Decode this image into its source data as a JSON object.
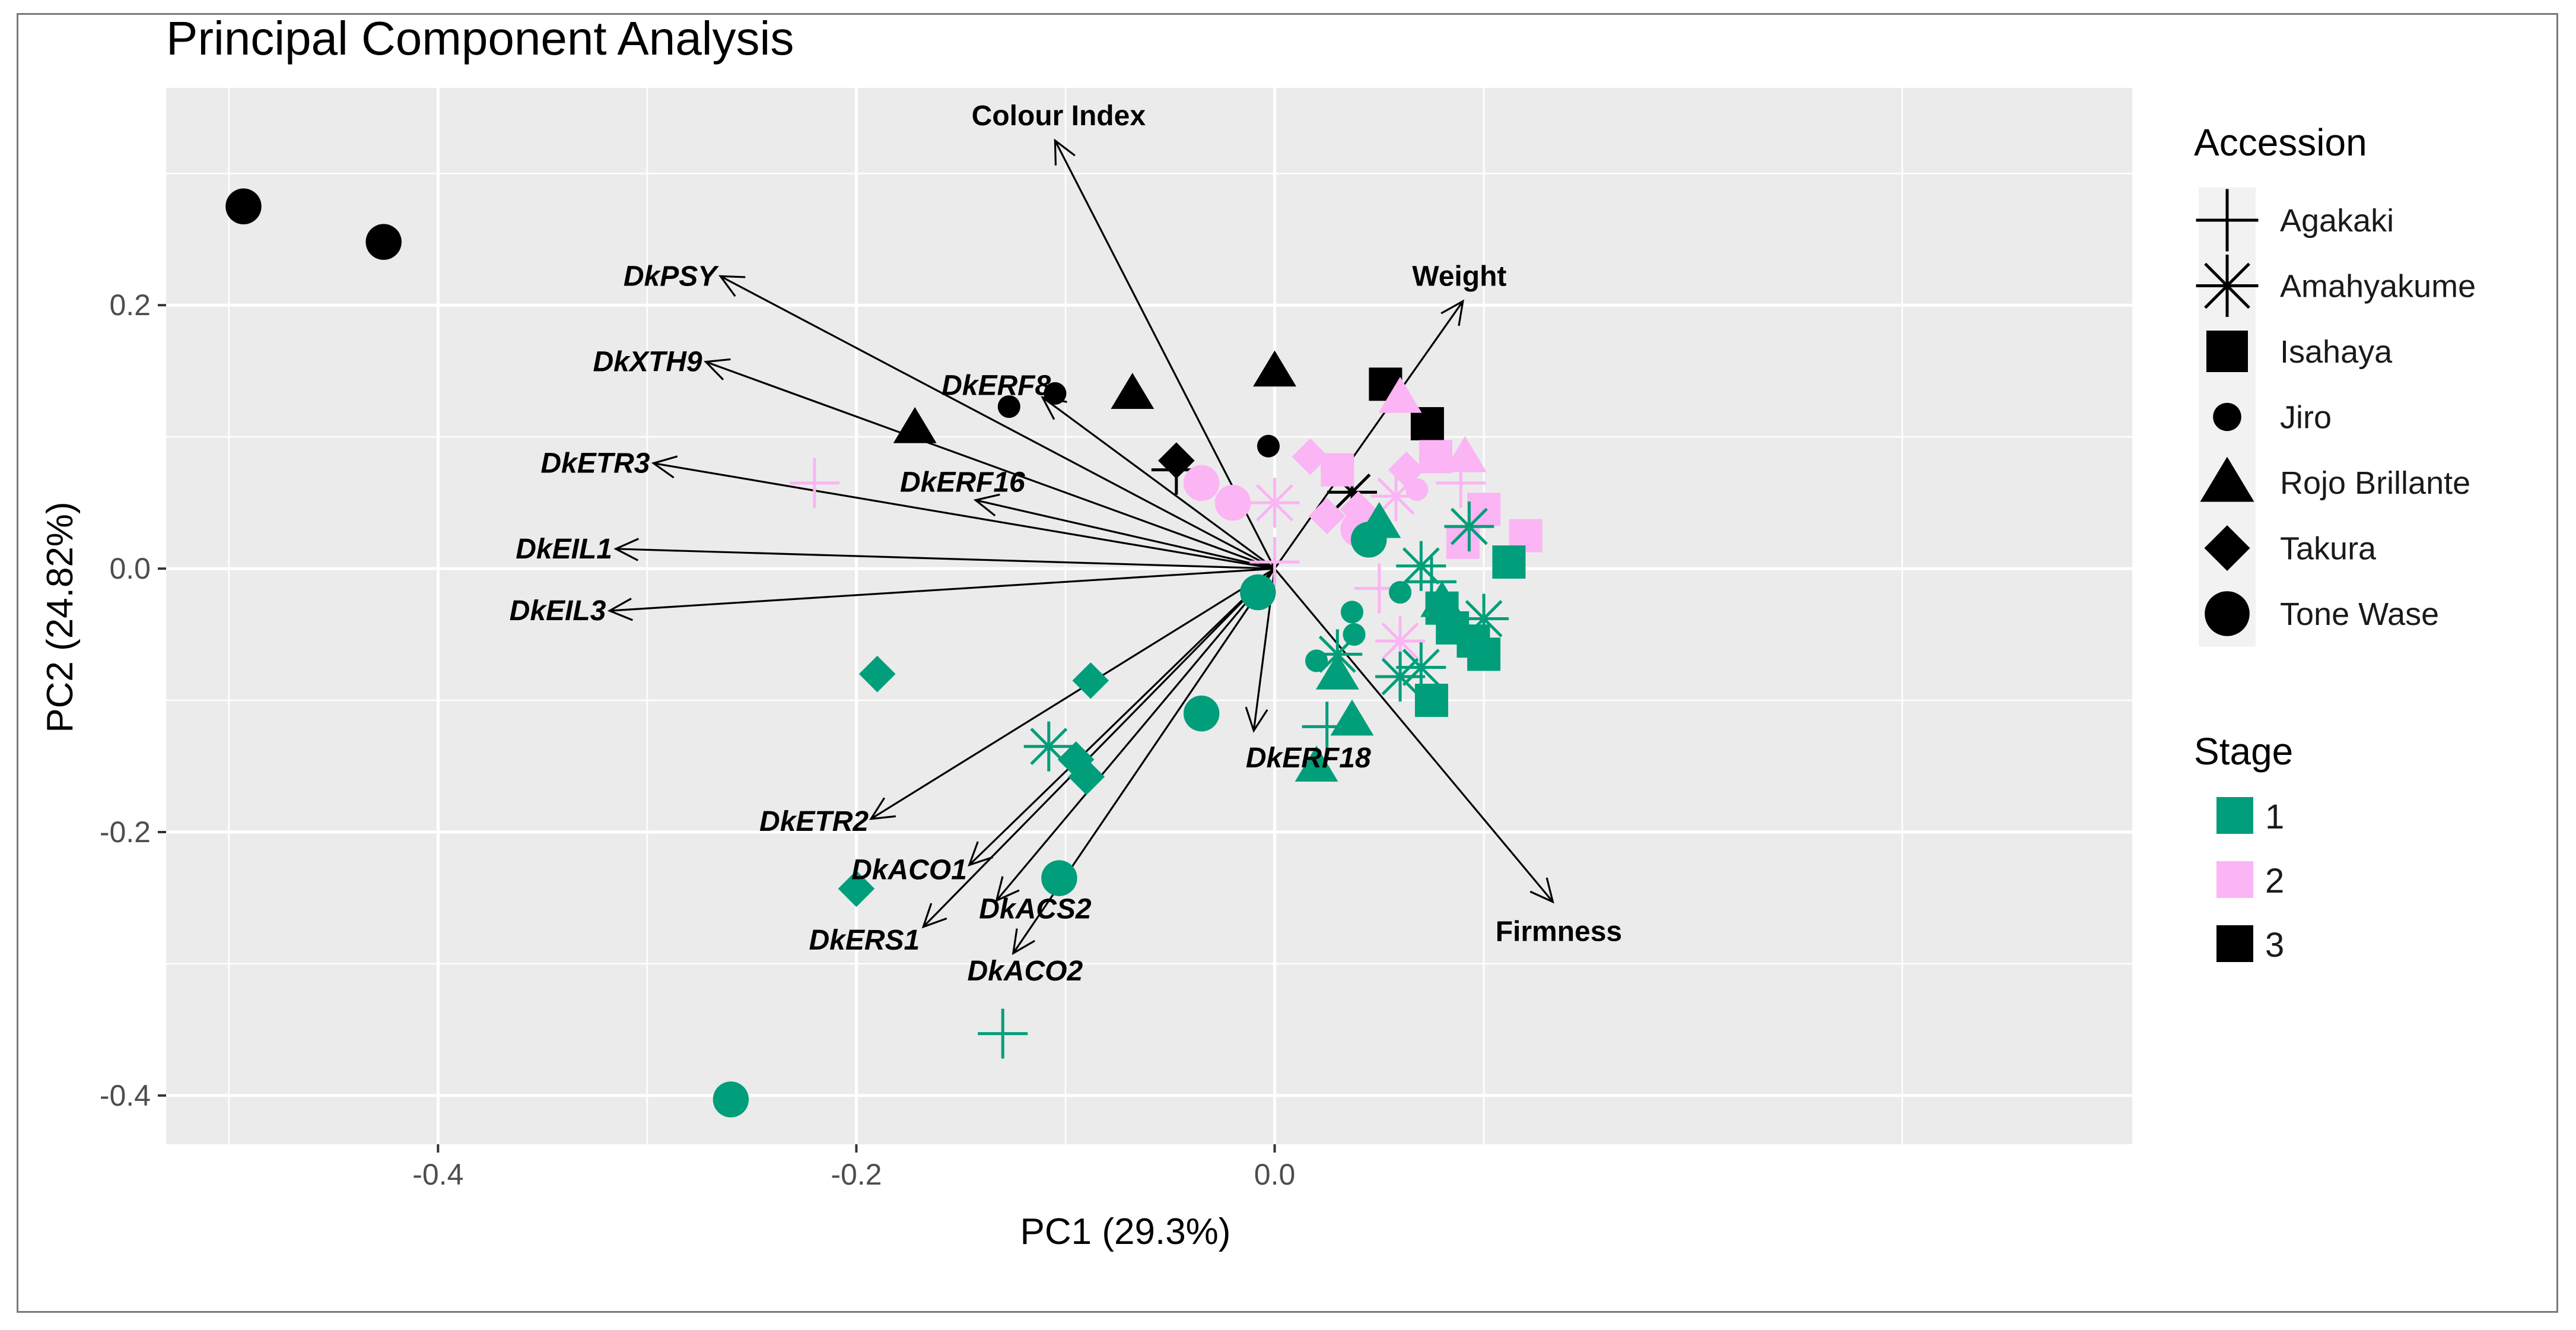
{
  "chart_data": {
    "type": "scatter",
    "title": "Principal Component Analysis",
    "xlabel": "PC1 (29.3%)",
    "ylabel": "PC2 (24.82%)",
    "xlim": [
      -0.53,
      0.41
    ],
    "ylim": [
      -0.437,
      0.365
    ],
    "x_ticks": [
      -0.4,
      -0.2,
      0.0
    ],
    "x_tick_labels": [
      "-0.4",
      "-0.2",
      "0.0"
    ],
    "y_ticks": [
      -0.4,
      -0.2,
      0.0,
      0.2
    ],
    "y_tick_labels": [
      "-0.4",
      "-0.2",
      "0.0",
      "0.2"
    ],
    "grid": true,
    "legend_accession": {
      "title": "Accession",
      "items": [
        {
          "label": "Agakaki",
          "shape": "plus"
        },
        {
          "label": "Amahyakume",
          "shape": "star"
        },
        {
          "label": "Isahaya",
          "shape": "square"
        },
        {
          "label": "Jiro",
          "shape": "smalldot"
        },
        {
          "label": "Rojo Brillante",
          "shape": "triangle"
        },
        {
          "label": "Takura",
          "shape": "diamond"
        },
        {
          "label": "Tone Wase",
          "shape": "circle"
        }
      ]
    },
    "legend_stage": {
      "title": "Stage",
      "items": [
        {
          "label": "1",
          "color": "#009E7A"
        },
        {
          "label": "2",
          "color": "#FBB4F4"
        },
        {
          "label": "3",
          "color": "#000000"
        }
      ]
    },
    "colors": {
      "1": "#009E7A",
      "2": "#FBB4F4",
      "3": "#000000"
    },
    "loadings": [
      {
        "label": "Colour Index",
        "x": -0.105,
        "y": 0.325,
        "italic": false
      },
      {
        "label": "Weight",
        "x": 0.09,
        "y": 0.203,
        "italic": false
      },
      {
        "label": "Firmness",
        "x": 0.133,
        "y": -0.253,
        "italic": false
      },
      {
        "label": "DkPSY",
        "x": -0.265,
        "y": 0.222,
        "italic": true
      },
      {
        "label": "DkXTH9",
        "x": -0.272,
        "y": 0.157,
        "italic": true
      },
      {
        "label": "DkERF8",
        "x": -0.111,
        "y": 0.13,
        "italic": true
      },
      {
        "label": "DkETR3",
        "x": -0.297,
        "y": 0.08,
        "italic": true
      },
      {
        "label": "DkERF16",
        "x": -0.143,
        "y": 0.052,
        "italic": true
      },
      {
        "label": "DkEIL1",
        "x": -0.315,
        "y": 0.015,
        "italic": true
      },
      {
        "label": "DkEIL3",
        "x": -0.318,
        "y": -0.032,
        "italic": true
      },
      {
        "label": "DkERF18",
        "x": -0.01,
        "y": -0.123,
        "italic": true
      },
      {
        "label": "DkETR2",
        "x": -0.193,
        "y": -0.19,
        "italic": true
      },
      {
        "label": "DkACO1",
        "x": -0.146,
        "y": -0.225,
        "italic": true
      },
      {
        "label": "DkERS1",
        "x": -0.168,
        "y": -0.272,
        "italic": true
      },
      {
        "label": "DkACS2",
        "x": -0.133,
        "y": -0.252,
        "italic": true
      },
      {
        "label": "DkACO2",
        "x": -0.125,
        "y": -0.292,
        "italic": true
      }
    ],
    "points": [
      {
        "x": -0.493,
        "y": 0.275,
        "shape": "circle",
        "stage": "3"
      },
      {
        "x": -0.426,
        "y": 0.248,
        "shape": "circle",
        "stage": "3"
      },
      {
        "x": -0.172,
        "y": 0.107,
        "shape": "triangle",
        "stage": "3"
      },
      {
        "x": -0.068,
        "y": 0.133,
        "shape": "triangle",
        "stage": "3"
      },
      {
        "x": 0.0,
        "y": 0.15,
        "shape": "triangle",
        "stage": "3"
      },
      {
        "x": -0.127,
        "y": 0.123,
        "shape": "smalldot",
        "stage": "3"
      },
      {
        "x": -0.105,
        "y": 0.133,
        "shape": "smalldot",
        "stage": "3"
      },
      {
        "x": -0.003,
        "y": 0.093,
        "shape": "smalldot",
        "stage": "3"
      },
      {
        "x": -0.047,
        "y": 0.082,
        "shape": "diamond",
        "stage": "3"
      },
      {
        "x": -0.047,
        "y": 0.075,
        "shape": "plus",
        "stage": "3"
      },
      {
        "x": 0.053,
        "y": 0.14,
        "shape": "square",
        "stage": "3"
      },
      {
        "x": 0.073,
        "y": 0.11,
        "shape": "square",
        "stage": "3"
      },
      {
        "x": 0.037,
        "y": 0.058,
        "shape": "star",
        "stage": "3"
      },
      {
        "x": -0.22,
        "y": 0.065,
        "shape": "plus",
        "stage": "2"
      },
      {
        "x": -0.035,
        "y": 0.065,
        "shape": "circle",
        "stage": "2"
      },
      {
        "x": -0.02,
        "y": 0.05,
        "shape": "circle",
        "stage": "2"
      },
      {
        "x": 0.0,
        "y": 0.05,
        "shape": "star",
        "stage": "2"
      },
      {
        "x": 0.0,
        "y": 0.005,
        "shape": "plus",
        "stage": "2"
      },
      {
        "x": 0.017,
        "y": 0.085,
        "shape": "diamond",
        "stage": "2"
      },
      {
        "x": 0.03,
        "y": 0.075,
        "shape": "square",
        "stage": "2"
      },
      {
        "x": 0.04,
        "y": 0.045,
        "shape": "diamond",
        "stage": "2"
      },
      {
        "x": 0.025,
        "y": 0.04,
        "shape": "diamond",
        "stage": "2"
      },
      {
        "x": 0.04,
        "y": 0.03,
        "shape": "circle",
        "stage": "2"
      },
      {
        "x": 0.058,
        "y": 0.055,
        "shape": "star",
        "stage": "2"
      },
      {
        "x": 0.06,
        "y": 0.13,
        "shape": "triangle",
        "stage": "2"
      },
      {
        "x": 0.063,
        "y": 0.075,
        "shape": "diamond",
        "stage": "2"
      },
      {
        "x": 0.068,
        "y": 0.06,
        "shape": "smalldot",
        "stage": "2"
      },
      {
        "x": 0.077,
        "y": 0.085,
        "shape": "square",
        "stage": "2"
      },
      {
        "x": 0.091,
        "y": 0.085,
        "shape": "triangle",
        "stage": "2"
      },
      {
        "x": 0.089,
        "y": 0.065,
        "shape": "plus",
        "stage": "2"
      },
      {
        "x": 0.1,
        "y": 0.045,
        "shape": "square",
        "stage": "2"
      },
      {
        "x": 0.12,
        "y": 0.025,
        "shape": "square",
        "stage": "2"
      },
      {
        "x": 0.09,
        "y": 0.02,
        "shape": "square",
        "stage": "2"
      },
      {
        "x": 0.05,
        "y": -0.015,
        "shape": "plus",
        "stage": "2"
      },
      {
        "x": 0.06,
        "y": -0.055,
        "shape": "star",
        "stage": "2"
      },
      {
        "x": -0.26,
        "y": -0.403,
        "shape": "circle",
        "stage": "1"
      },
      {
        "x": -0.13,
        "y": -0.353,
        "shape": "plus",
        "stage": "1"
      },
      {
        "x": -0.2,
        "y": -0.243,
        "shape": "diamond",
        "stage": "1"
      },
      {
        "x": -0.19,
        "y": -0.08,
        "shape": "diamond",
        "stage": "1"
      },
      {
        "x": -0.088,
        "y": -0.085,
        "shape": "diamond",
        "stage": "1"
      },
      {
        "x": -0.103,
        "y": -0.235,
        "shape": "circle",
        "stage": "1"
      },
      {
        "x": -0.108,
        "y": -0.135,
        "shape": "star",
        "stage": "1"
      },
      {
        "x": -0.095,
        "y": -0.145,
        "shape": "diamond",
        "stage": "1"
      },
      {
        "x": -0.09,
        "y": -0.158,
        "shape": "diamond",
        "stage": "1"
      },
      {
        "x": -0.035,
        "y": -0.11,
        "shape": "circle",
        "stage": "1"
      },
      {
        "x": -0.008,
        "y": -0.018,
        "shape": "circle",
        "stage": "1"
      },
      {
        "x": 0.02,
        "y": -0.15,
        "shape": "triangle",
        "stage": "1"
      },
      {
        "x": 0.025,
        "y": -0.12,
        "shape": "plus",
        "stage": "1"
      },
      {
        "x": 0.037,
        "y": -0.115,
        "shape": "triangle",
        "stage": "1"
      },
      {
        "x": 0.03,
        "y": -0.08,
        "shape": "triangle",
        "stage": "1"
      },
      {
        "x": 0.02,
        "y": -0.07,
        "shape": "smalldot",
        "stage": "1"
      },
      {
        "x": 0.03,
        "y": -0.065,
        "shape": "star",
        "stage": "1"
      },
      {
        "x": 0.038,
        "y": -0.05,
        "shape": "smalldot",
        "stage": "1"
      },
      {
        "x": 0.037,
        "y": -0.033,
        "shape": "smalldot",
        "stage": "1"
      },
      {
        "x": 0.06,
        "y": -0.082,
        "shape": "star",
        "stage": "1"
      },
      {
        "x": 0.07,
        "y": -0.075,
        "shape": "star",
        "stage": "1"
      },
      {
        "x": 0.075,
        "y": -0.1,
        "shape": "square",
        "stage": "1"
      },
      {
        "x": 0.045,
        "y": 0.022,
        "shape": "circle",
        "stage": "1"
      },
      {
        "x": 0.05,
        "y": 0.035,
        "shape": "triangle",
        "stage": "1"
      },
      {
        "x": 0.06,
        "y": -0.018,
        "shape": "smalldot",
        "stage": "1"
      },
      {
        "x": 0.07,
        "y": 0.002,
        "shape": "star",
        "stage": "1"
      },
      {
        "x": 0.075,
        "y": -0.01,
        "shape": "plus",
        "stage": "1"
      },
      {
        "x": 0.08,
        "y": -0.03,
        "shape": "square",
        "stage": "1"
      },
      {
        "x": 0.08,
        "y": -0.025,
        "shape": "triangle",
        "stage": "1"
      },
      {
        "x": 0.085,
        "y": -0.045,
        "shape": "square",
        "stage": "1"
      },
      {
        "x": 0.093,
        "y": 0.032,
        "shape": "star",
        "stage": "1"
      },
      {
        "x": 0.095,
        "y": -0.055,
        "shape": "square",
        "stage": "1"
      },
      {
        "x": 0.1,
        "y": -0.065,
        "shape": "square",
        "stage": "1"
      },
      {
        "x": 0.1,
        "y": -0.038,
        "shape": "star",
        "stage": "1"
      },
      {
        "x": 0.112,
        "y": 0.005,
        "shape": "square",
        "stage": "1"
      }
    ]
  }
}
